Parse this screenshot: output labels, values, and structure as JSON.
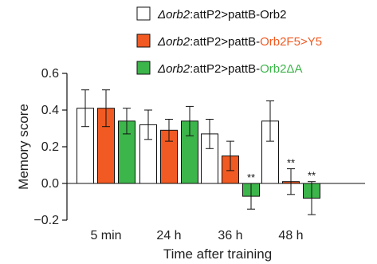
{
  "chart_data": {
    "type": "bar",
    "categories": [
      "5 min",
      "24 h",
      "36 h",
      "48 h"
    ],
    "xlabel": "Time after training",
    "ylabel": "Memory score",
    "ylim": [
      -0.2,
      0.6
    ],
    "yticks": [
      "0.6",
      "0.4",
      "0.2",
      "0.0",
      "−0.2"
    ],
    "ytick_values": [
      0.6,
      0.4,
      0.2,
      0.0,
      -0.2
    ],
    "grid": false,
    "legend_position": "top-right",
    "series": [
      {
        "name_prefix": "Δorb2",
        "name_middle": ":attP2>pattB-",
        "name_suffix": "Orb2",
        "color": "#ffffff",
        "label_color": "#111111",
        "values": [
          0.41,
          0.32,
          0.27,
          0.34
        ],
        "errors": [
          0.1,
          0.08,
          0.08,
          0.11
        ],
        "annotations": [
          "",
          "",
          "",
          ""
        ]
      },
      {
        "name_prefix": "Δorb2",
        "name_middle": ":attP2>pattB-",
        "name_suffix": "Orb2F5>Y5",
        "color": "#f15a22",
        "label_color": "#f15a22",
        "values": [
          0.41,
          0.29,
          0.15,
          0.01
        ],
        "errors": [
          0.1,
          0.06,
          0.08,
          0.07
        ],
        "annotations": [
          "",
          "",
          "",
          "**"
        ]
      },
      {
        "name_prefix": "Δorb2",
        "name_middle": ":attP2>pattB-",
        "name_suffix": "Orb2ΔA",
        "color": "#3cb54a",
        "label_color": "#3cb54a",
        "values": [
          0.34,
          0.34,
          -0.07,
          -0.08
        ],
        "errors": [
          0.07,
          0.08,
          0.07,
          0.09
        ],
        "annotations": [
          "",
          "",
          "**",
          "**"
        ]
      }
    ]
  }
}
